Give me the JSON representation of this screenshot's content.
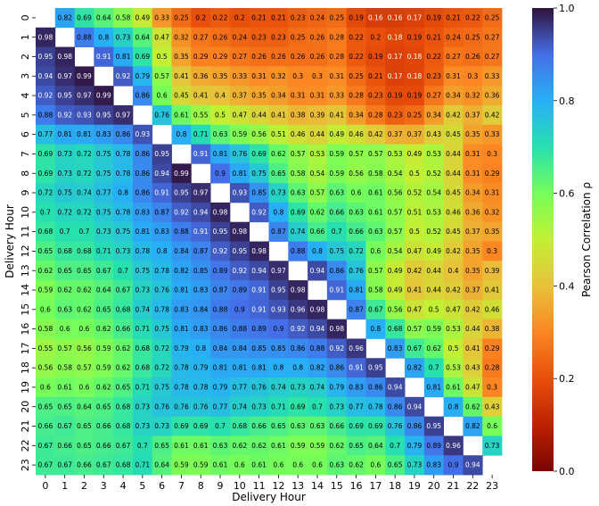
{
  "chart_data": {
    "type": "heatmap",
    "xlabel": "Delivery Hour",
    "ylabel": "Delivery Hour",
    "x_categories": [
      "0",
      "1",
      "2",
      "3",
      "4",
      "5",
      "6",
      "7",
      "8",
      "9",
      "10",
      "11",
      "12",
      "13",
      "14",
      "15",
      "16",
      "17",
      "18",
      "19",
      "20",
      "21",
      "22",
      "23"
    ],
    "y_categories": [
      "0",
      "1",
      "2",
      "3",
      "4",
      "5",
      "6",
      "7",
      "8",
      "9",
      "10",
      "11",
      "12",
      "13",
      "14",
      "15",
      "16",
      "17",
      "18",
      "19",
      "20",
      "21",
      "22",
      "23"
    ],
    "colorbar": {
      "label": "Pearson Correlation ρ",
      "range": [
        0.0,
        1.0
      ],
      "ticks": [
        "0.0",
        "0.2",
        "0.4",
        "0.6",
        "0.8",
        "1.0"
      ],
      "colormap": "turbo (reversed)"
    },
    "diagonal_masked": true,
    "values": [
      [
        null,
        0.82,
        0.69,
        0.64,
        0.58,
        0.49,
        0.33,
        0.25,
        0.2,
        0.22,
        0.2,
        0.21,
        0.21,
        0.23,
        0.24,
        0.25,
        0.19,
        0.16,
        0.16,
        0.17,
        0.19,
        0.21,
        0.22,
        0.25
      ],
      [
        0.98,
        null,
        0.88,
        0.8,
        0.73,
        0.64,
        0.47,
        0.32,
        0.27,
        0.26,
        0.24,
        0.23,
        0.23,
        0.25,
        0.26,
        0.28,
        0.22,
        0.2,
        0.18,
        0.19,
        0.21,
        0.24,
        0.25,
        0.27
      ],
      [
        0.95,
        0.98,
        null,
        0.91,
        0.81,
        0.69,
        0.5,
        0.35,
        0.29,
        0.29,
        0.27,
        0.26,
        0.26,
        0.26,
        0.26,
        0.28,
        0.22,
        0.19,
        0.17,
        0.18,
        0.22,
        0.27,
        0.26,
        0.27
      ],
      [
        0.94,
        0.97,
        0.99,
        null,
        0.92,
        0.79,
        0.57,
        0.41,
        0.36,
        0.35,
        0.33,
        0.31,
        0.32,
        0.3,
        0.3,
        0.31,
        0.25,
        0.21,
        0.17,
        0.18,
        0.23,
        0.31,
        0.3,
        0.33
      ],
      [
        0.92,
        0.95,
        0.97,
        0.99,
        null,
        0.86,
        0.6,
        0.45,
        0.41,
        0.4,
        0.37,
        0.35,
        0.34,
        0.31,
        0.31,
        0.33,
        0.28,
        0.23,
        0.19,
        0.19,
        0.27,
        0.34,
        0.32,
        0.36
      ],
      [
        0.88,
        0.92,
        0.93,
        0.95,
        0.97,
        null,
        0.76,
        0.61,
        0.55,
        0.5,
        0.47,
        0.44,
        0.41,
        0.38,
        0.39,
        0.41,
        0.34,
        0.28,
        0.23,
        0.25,
        0.34,
        0.42,
        0.37,
        0.42
      ],
      [
        0.77,
        0.81,
        0.81,
        0.83,
        0.86,
        0.93,
        null,
        0.8,
        0.71,
        0.63,
        0.59,
        0.56,
        0.51,
        0.46,
        0.44,
        0.49,
        0.46,
        0.42,
        0.37,
        0.37,
        0.43,
        0.45,
        0.35,
        0.33
      ],
      [
        0.69,
        0.73,
        0.72,
        0.75,
        0.78,
        0.86,
        0.95,
        null,
        0.91,
        0.81,
        0.76,
        0.69,
        0.62,
        0.57,
        0.53,
        0.59,
        0.57,
        0.57,
        0.53,
        0.49,
        0.53,
        0.44,
        0.31,
        0.3
      ],
      [
        0.69,
        0.73,
        0.72,
        0.75,
        0.78,
        0.86,
        0.94,
        0.99,
        null,
        0.9,
        0.81,
        0.75,
        0.65,
        0.58,
        0.54,
        0.59,
        0.56,
        0.58,
        0.54,
        0.5,
        0.52,
        0.44,
        0.31,
        0.29
      ],
      [
        0.72,
        0.75,
        0.74,
        0.77,
        0.8,
        0.86,
        0.91,
        0.95,
        0.97,
        null,
        0.93,
        0.85,
        0.73,
        0.63,
        0.57,
        0.63,
        0.6,
        0.61,
        0.56,
        0.52,
        0.54,
        0.45,
        0.34,
        0.31
      ],
      [
        0.7,
        0.72,
        0.72,
        0.75,
        0.78,
        0.83,
        0.87,
        0.92,
        0.94,
        0.98,
        null,
        0.92,
        0.8,
        0.69,
        0.62,
        0.66,
        0.63,
        0.61,
        0.57,
        0.51,
        0.53,
        0.46,
        0.36,
        0.32
      ],
      [
        0.68,
        0.7,
        0.7,
        0.73,
        0.75,
        0.81,
        0.83,
        0.88,
        0.91,
        0.95,
        0.98,
        null,
        0.87,
        0.74,
        0.66,
        0.7,
        0.66,
        0.63,
        0.57,
        0.5,
        0.52,
        0.45,
        0.37,
        0.35
      ],
      [
        0.65,
        0.68,
        0.68,
        0.71,
        0.73,
        0.78,
        0.8,
        0.84,
        0.87,
        0.92,
        0.95,
        0.98,
        null,
        0.88,
        0.8,
        0.75,
        0.72,
        0.6,
        0.54,
        0.47,
        0.49,
        0.42,
        0.35,
        0.3
      ],
      [
        0.62,
        0.65,
        0.65,
        0.67,
        0.7,
        0.75,
        0.78,
        0.82,
        0.85,
        0.89,
        0.92,
        0.94,
        0.97,
        null,
        0.94,
        0.86,
        0.76,
        0.57,
        0.49,
        0.42,
        0.44,
        0.4,
        0.35,
        0.39
      ],
      [
        0.59,
        0.62,
        0.62,
        0.64,
        0.67,
        0.73,
        0.76,
        0.81,
        0.83,
        0.87,
        0.89,
        0.91,
        0.95,
        0.98,
        null,
        0.91,
        0.81,
        0.58,
        0.49,
        0.41,
        0.44,
        0.42,
        0.37,
        0.41
      ],
      [
        0.6,
        0.63,
        0.62,
        0.65,
        0.68,
        0.74,
        0.78,
        0.83,
        0.84,
        0.88,
        0.9,
        0.91,
        0.93,
        0.96,
        0.98,
        null,
        0.87,
        0.67,
        0.56,
        0.47,
        0.5,
        0.47,
        0.42,
        0.46
      ],
      [
        0.58,
        0.6,
        0.6,
        0.62,
        0.66,
        0.71,
        0.75,
        0.81,
        0.83,
        0.86,
        0.88,
        0.89,
        0.9,
        0.92,
        0.94,
        0.98,
        null,
        0.8,
        0.68,
        0.57,
        0.59,
        0.53,
        0.44,
        0.38
      ],
      [
        0.55,
        0.57,
        0.56,
        0.59,
        0.62,
        0.68,
        0.72,
        0.79,
        0.8,
        0.84,
        0.84,
        0.85,
        0.85,
        0.86,
        0.88,
        0.92,
        0.96,
        null,
        0.83,
        0.67,
        0.62,
        0.5,
        0.41,
        0.29
      ],
      [
        0.56,
        0.58,
        0.57,
        0.59,
        0.62,
        0.68,
        0.72,
        0.78,
        0.79,
        0.81,
        0.81,
        0.81,
        0.8,
        0.8,
        0.82,
        0.86,
        0.91,
        0.95,
        null,
        0.82,
        0.7,
        0.53,
        0.43,
        0.28
      ],
      [
        0.6,
        0.61,
        0.6,
        0.62,
        0.65,
        0.71,
        0.75,
        0.78,
        0.78,
        0.79,
        0.77,
        0.76,
        0.74,
        0.73,
        0.74,
        0.79,
        0.83,
        0.86,
        0.94,
        null,
        0.81,
        0.61,
        0.47,
        0.3
      ],
      [
        0.65,
        0.65,
        0.64,
        0.65,
        0.68,
        0.73,
        0.76,
        0.76,
        0.76,
        0.77,
        0.74,
        0.73,
        0.71,
        0.69,
        0.7,
        0.73,
        0.77,
        0.78,
        0.86,
        0.94,
        null,
        0.8,
        0.62,
        0.43
      ],
      [
        0.66,
        0.67,
        0.65,
        0.66,
        0.68,
        0.73,
        0.73,
        0.69,
        0.69,
        0.7,
        0.68,
        0.66,
        0.65,
        0.63,
        0.63,
        0.66,
        0.69,
        0.69,
        0.76,
        0.86,
        0.95,
        null,
        0.82,
        0.6
      ],
      [
        0.67,
        0.66,
        0.65,
        0.66,
        0.67,
        0.7,
        0.65,
        0.61,
        0.61,
        0.63,
        0.62,
        0.62,
        0.61,
        0.59,
        0.59,
        0.62,
        0.65,
        0.64,
        0.7,
        0.79,
        0.89,
        0.96,
        null,
        0.73
      ],
      [
        0.67,
        0.67,
        0.66,
        0.67,
        0.68,
        0.71,
        0.64,
        0.59,
        0.59,
        0.61,
        0.6,
        0.61,
        0.6,
        0.6,
        0.6,
        0.63,
        0.62,
        0.6,
        0.65,
        0.73,
        0.83,
        0.9,
        0.94,
        null
      ]
    ]
  }
}
